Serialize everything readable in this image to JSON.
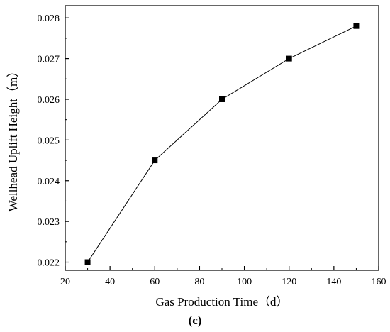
{
  "chart_data": {
    "type": "line",
    "x": [
      30,
      60,
      90,
      120,
      150
    ],
    "series": [
      {
        "values": [
          0.022,
          0.0245,
          0.026,
          0.027,
          0.0278
        ]
      }
    ],
    "xlabel": "Gas Production Time（d）",
    "ylabel": "Wellhead Uplift Height（m）",
    "xlim": [
      20,
      160
    ],
    "ylim": [
      0.0218,
      0.0283
    ],
    "xticks": [
      "20",
      "40",
      "60",
      "80",
      "100",
      "120",
      "140",
      "160"
    ],
    "yticks": [
      "0.022",
      "0.023",
      "0.024",
      "0.025",
      "0.026",
      "0.027",
      "0.028"
    ],
    "marker": "square",
    "grid": false,
    "panel_label": "(c)",
    "colors": {
      "line": "#000000",
      "marker": "#000000",
      "axis": "#000000"
    }
  }
}
